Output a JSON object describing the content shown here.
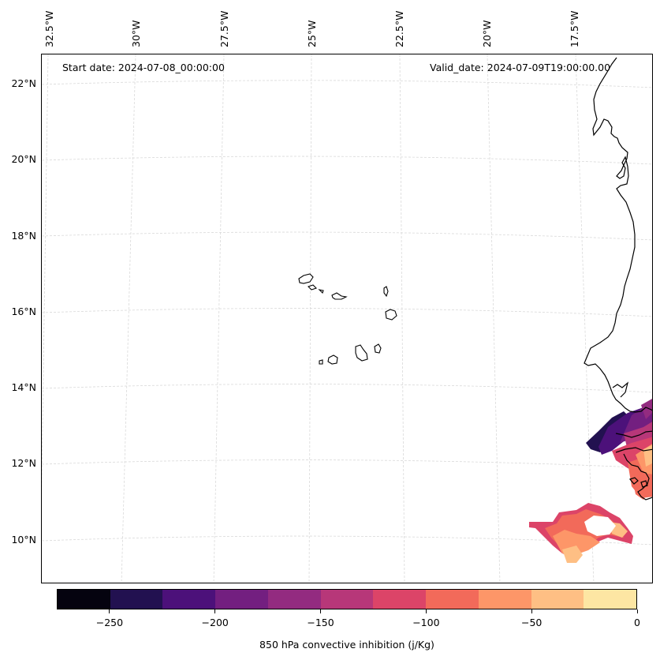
{
  "map": {
    "start_date": "Start date: 2024-07-08_00:00:00",
    "valid_date": "Valid_date: 2024-07-09T19:00:00.00",
    "lon_labels": [
      "32.5°W",
      "30°W",
      "27.5°W",
      "25°W",
      "22.5°W",
      "20°W",
      "17.5°W"
    ],
    "lat_labels": [
      "22°N",
      "20°N",
      "18°N",
      "16°N",
      "14°N",
      "12°N",
      "10°N"
    ],
    "field": "850 hPa convective inhibition",
    "coastline_color": "#000000",
    "gridline_color": "#d9d9d9"
  },
  "colorbar": {
    "label": "850 hPa convective inhibition (j/Kg)",
    "tick_labels": [
      "−250",
      "−200",
      "−150",
      "−100",
      "−50",
      "0"
    ],
    "tick_values": [
      -250,
      -200,
      -150,
      -100,
      -50,
      0
    ],
    "range": [
      -275,
      0
    ],
    "colors": [
      "#05030f",
      "#221150",
      "#4c117a",
      "#731f80",
      "#932b80",
      "#b73779",
      "#dc4468",
      "#f26a5a",
      "#fd9668",
      "#febf84",
      "#fde6a3"
    ]
  }
}
